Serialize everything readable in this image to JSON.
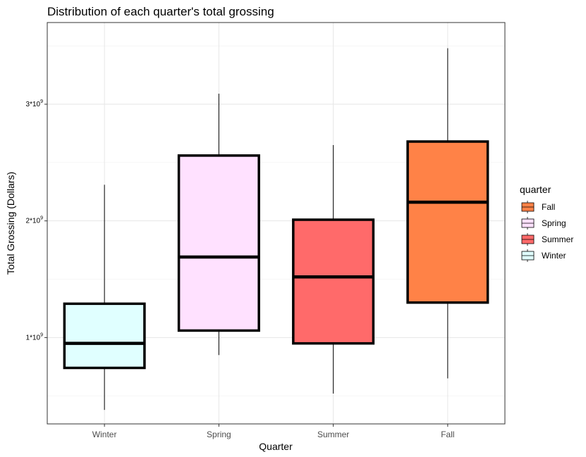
{
  "chart_data": {
    "type": "boxplot",
    "title": "Distribution of each quarter's total grossing",
    "xlabel": "Quarter",
    "ylabel": "Total Grossing (Dollars)",
    "ylim": [
      260000000,
      3700000000
    ],
    "yticks": [
      {
        "value": 1000000000,
        "base": "1*10",
        "exp": "9"
      },
      {
        "value": 2000000000,
        "base": "2*10",
        "exp": "9"
      },
      {
        "value": 3000000000,
        "base": "3*10",
        "exp": "9"
      }
    ],
    "grid": true,
    "categories": [
      "Winter",
      "Spring",
      "Summer",
      "Fall"
    ],
    "boxes": [
      {
        "category": "Winter",
        "whisker_low": 380000000,
        "q1": 740000000,
        "median": 950000000,
        "q3": 1290000000,
        "whisker_high": 2310000000,
        "color": "#E0FFFF"
      },
      {
        "category": "Spring",
        "whisker_low": 850000000,
        "q1": 1060000000,
        "median": 1690000000,
        "q3": 2560000000,
        "whisker_high": 3090000000,
        "color": "#FFE1FF"
      },
      {
        "category": "Summer",
        "whisker_low": 520000000,
        "q1": 950000000,
        "median": 1520000000,
        "q3": 2010000000,
        "whisker_high": 2650000000,
        "color": "#FF6A6A"
      },
      {
        "category": "Fall",
        "whisker_low": 650000000,
        "q1": 1300000000,
        "median": 2160000000,
        "q3": 2680000000,
        "whisker_high": 3480000000,
        "color": "#FF8247"
      }
    ],
    "legend": {
      "title": "quarter",
      "position": "right",
      "items": [
        {
          "label": "Fall",
          "color": "#FF8247"
        },
        {
          "label": "Spring",
          "color": "#FFE1FF"
        },
        {
          "label": "Summer",
          "color": "#FF6A6A"
        },
        {
          "label": "Winter",
          "color": "#E0FFFF"
        }
      ]
    }
  }
}
